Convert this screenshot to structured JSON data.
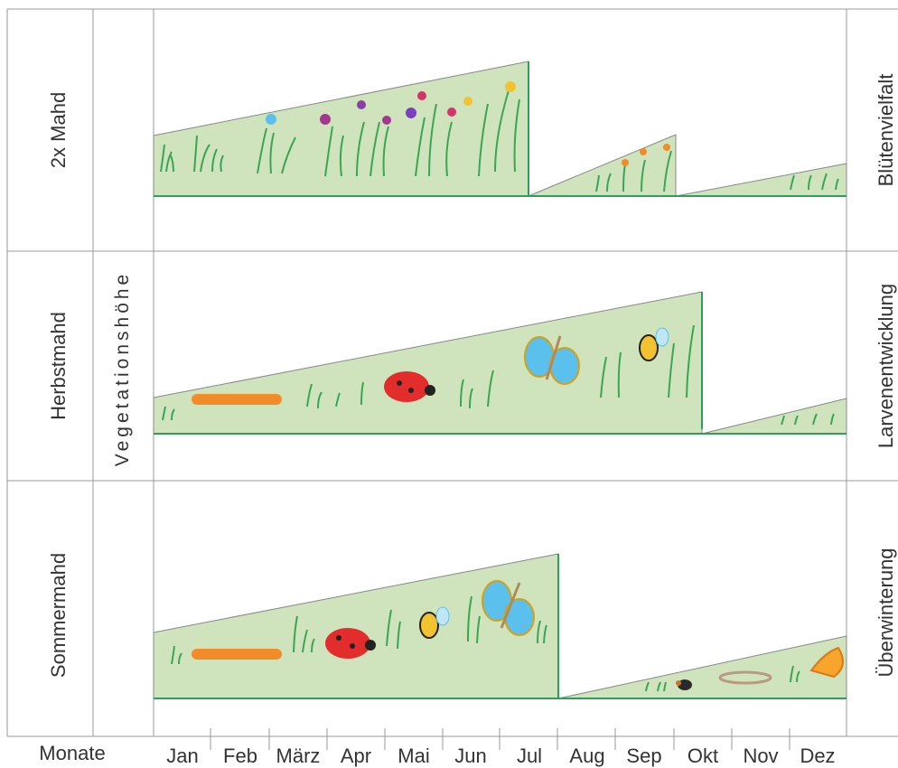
{
  "rows": [
    {
      "name": "2x Mahd",
      "right_label": "Blütenvielfalt"
    },
    {
      "name": "Herbstmahd",
      "right_label": "Larvenentwicklung"
    },
    {
      "name": "Sommermahd",
      "right_label": "Überwinterung"
    }
  ],
  "y_axis_label": "Vegetationshöhe",
  "x_axis_title": "Monate",
  "months": [
    "Jan",
    "Feb",
    "März",
    "Apr",
    "Mai",
    "Jun",
    "Jul",
    "Aug",
    "Sep",
    "Okt",
    "Nov",
    "Dez"
  ],
  "colors": {
    "fill": "#cfe4bd",
    "edge": "#2f9e58",
    "grass": "#3aa655",
    "frame": "#999999"
  },
  "icons": [
    "grass-icon",
    "flower-icon",
    "caterpillar-icon",
    "ladybug-icon",
    "butterfly-icon",
    "bee-icon",
    "beetle-icon",
    "larva-icon"
  ]
}
